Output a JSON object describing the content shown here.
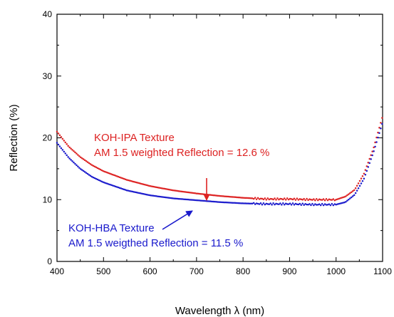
{
  "chart_data": {
    "type": "scatter",
    "title": "",
    "xlabel": "Wavelength λ (nm)",
    "ylabel": "Reflection (%)",
    "xlim": [
      400,
      1100
    ],
    "ylim": [
      0,
      40
    ],
    "x_ticks": [
      400,
      500,
      600,
      700,
      800,
      900,
      1000,
      1100
    ],
    "y_ticks": [
      0,
      10,
      20,
      30,
      40
    ],
    "x_tick_labels": [
      "400",
      "500",
      "600",
      "700",
      "800",
      "900",
      "1000",
      "1100"
    ],
    "y_tick_labels": [
      "0",
      "10",
      "20",
      "30",
      "40"
    ],
    "grid": false,
    "legend": "none",
    "series": [
      {
        "color": "#dd2222",
        "x": [
          400,
          425,
          450,
          475,
          500,
          550,
          600,
          650,
          700,
          750,
          800,
          850,
          900,
          950,
          1000,
          1020,
          1040,
          1060,
          1080,
          1100
        ],
        "y": [
          21.0,
          18.6,
          16.9,
          15.6,
          14.6,
          13.2,
          12.2,
          11.5,
          11.0,
          10.6,
          10.3,
          10.1,
          10.1,
          10.0,
          10.0,
          10.5,
          11.6,
          14.2,
          18.2,
          23.5
        ]
      },
      {
        "color": "#1a1acc",
        "x": [
          400,
          425,
          450,
          475,
          500,
          550,
          600,
          650,
          700,
          750,
          800,
          850,
          900,
          950,
          1000,
          1020,
          1040,
          1060,
          1080,
          1100
        ],
        "y": [
          19.2,
          16.8,
          15.0,
          13.7,
          12.8,
          11.5,
          10.7,
          10.2,
          9.9,
          9.6,
          9.4,
          9.3,
          9.3,
          9.2,
          9.2,
          9.6,
          10.8,
          13.4,
          17.6,
          22.5
        ]
      }
    ],
    "annotations": [
      {
        "color": "#dd2222",
        "lines": [
          "KOH-IPA Texture",
          "AM 1.5 weighted Reflection = 12.6 %"
        ],
        "arrow_tip": [
          723,
          11.0
        ]
      },
      {
        "color": "#1a1acc",
        "lines": [
          "KOH-HBA Texture",
          "AM 1.5 weigthed Reflection = 11.5 %"
        ],
        "arrow_tip": [
          745,
          9.7
        ]
      }
    ]
  }
}
